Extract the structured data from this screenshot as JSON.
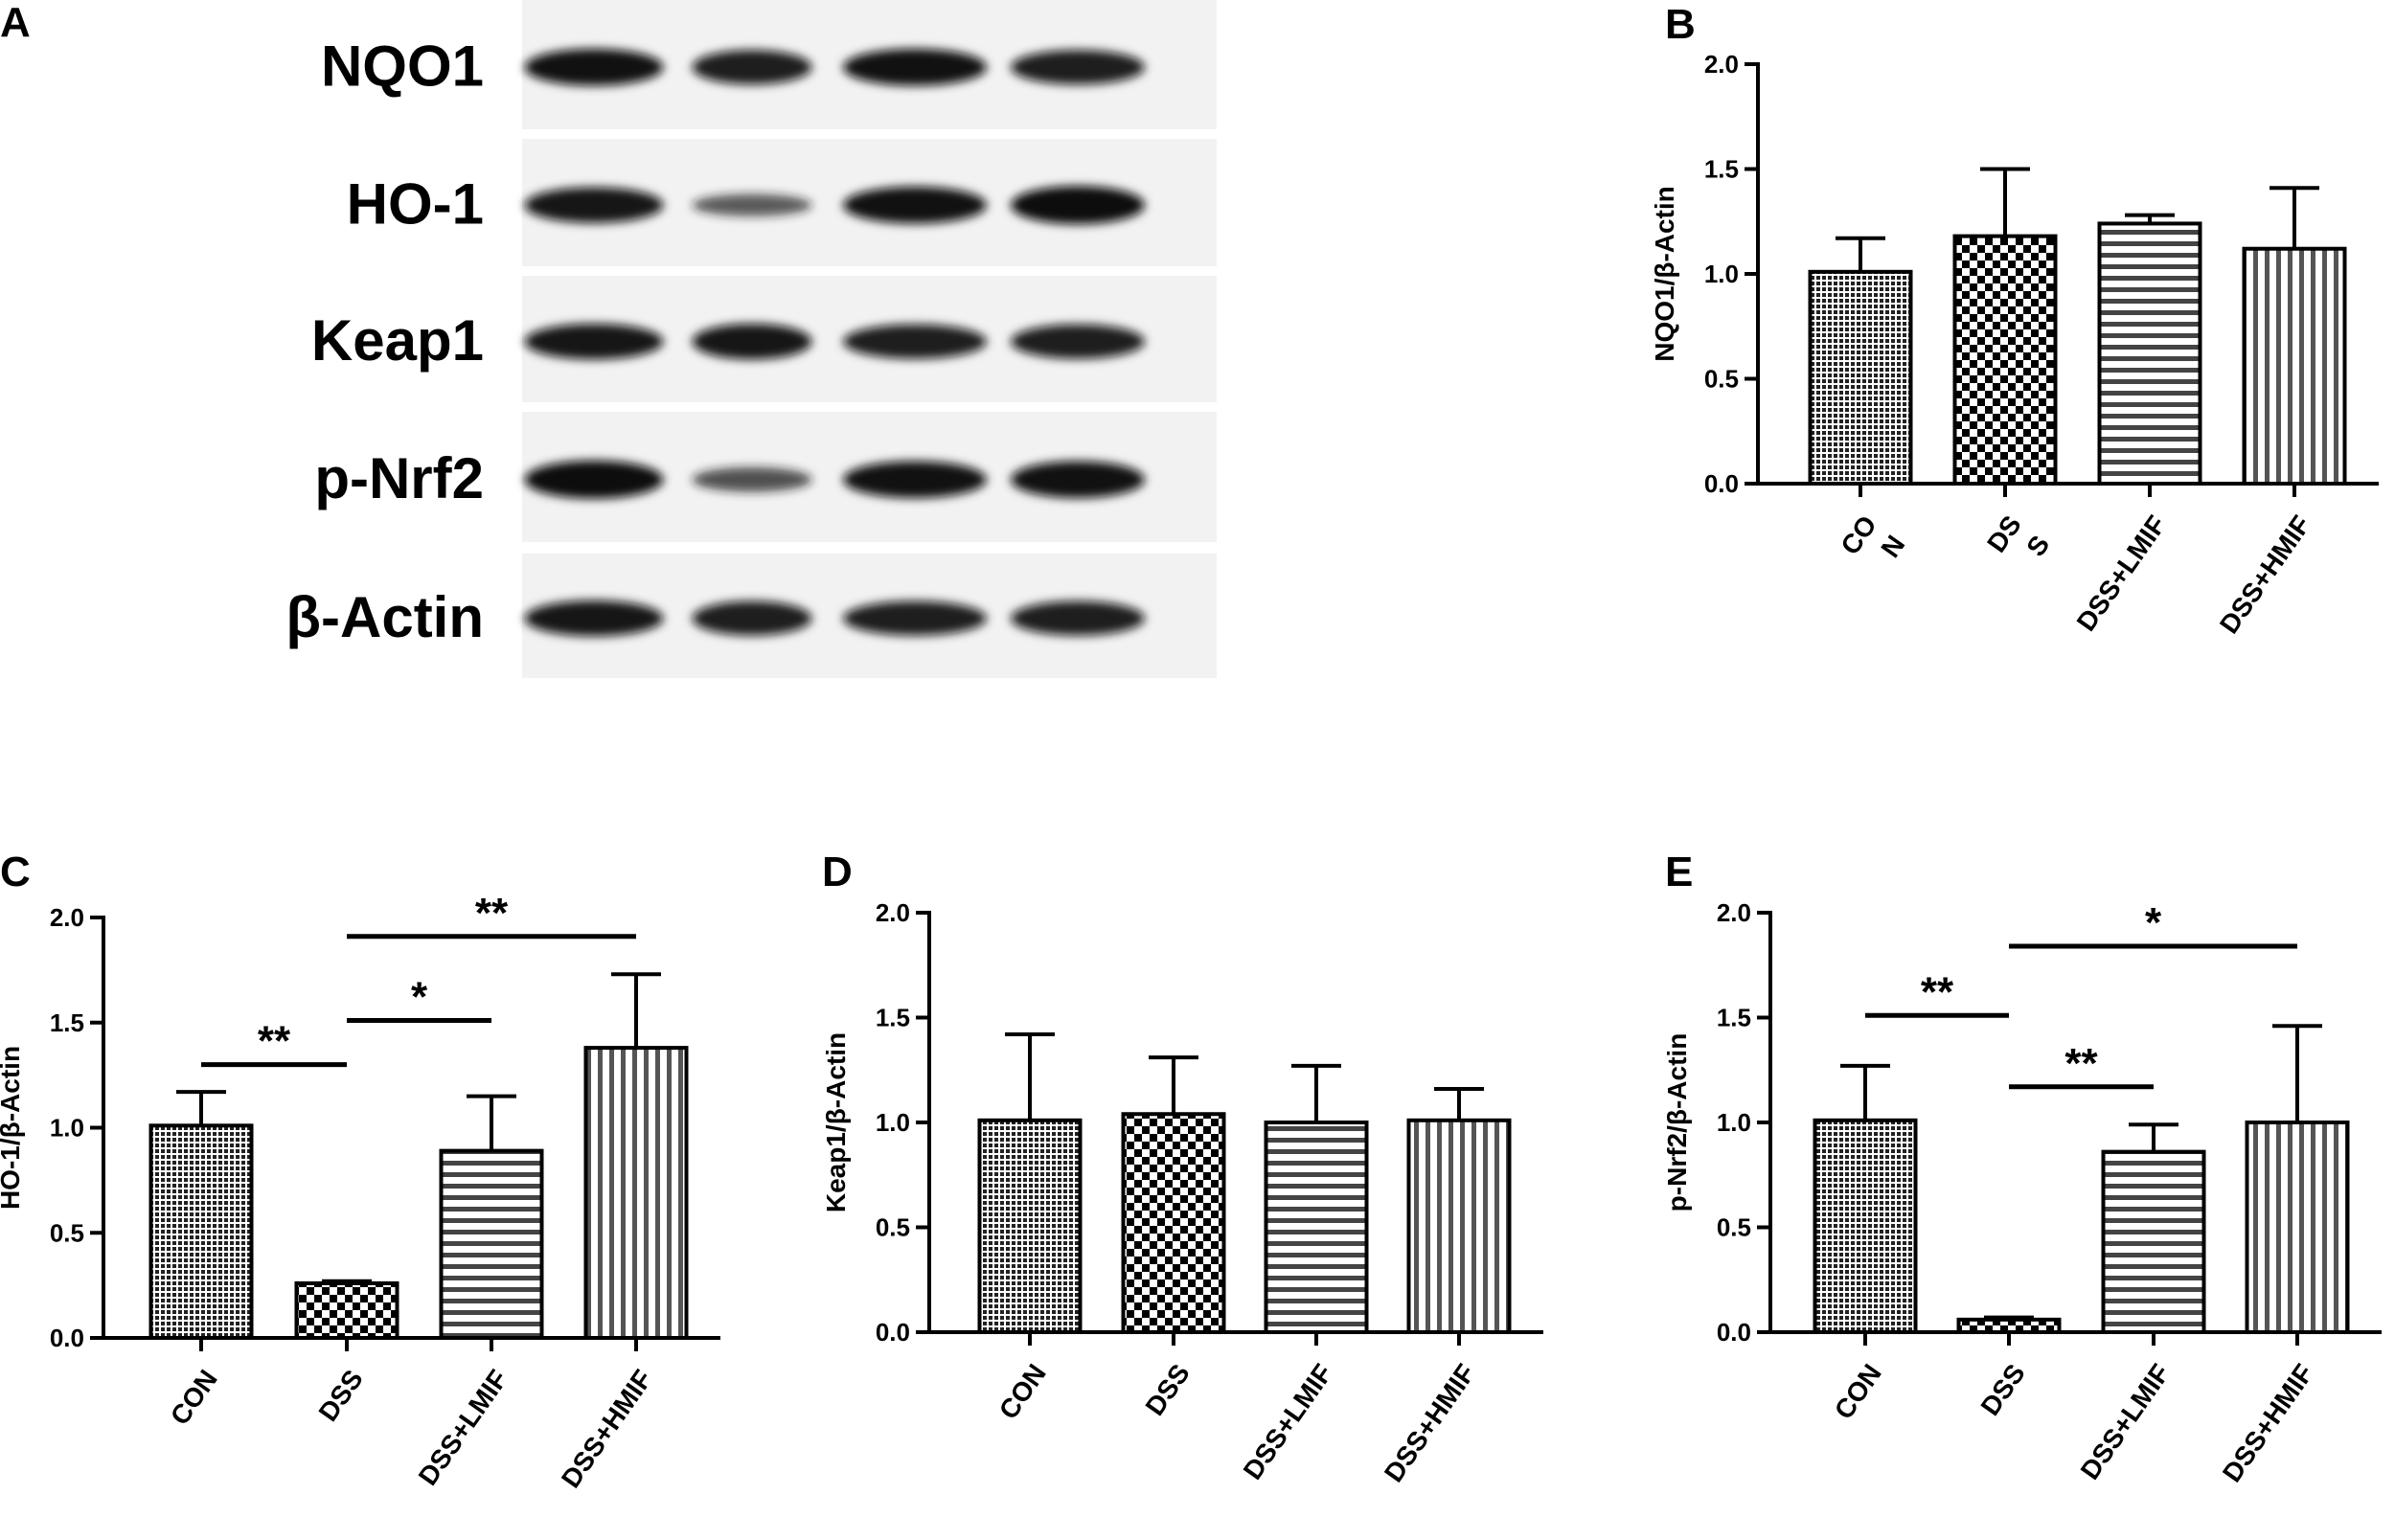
{
  "panel_letters": {
    "a": "A",
    "b": "B",
    "c": "C",
    "d": "D",
    "e": "E"
  },
  "blot": {
    "rows": [
      {
        "label": "NQO1",
        "intensities": [
          0.95,
          0.85,
          0.95,
          0.85
        ]
      },
      {
        "label": "HO-1",
        "intensities": [
          0.9,
          0.35,
          0.95,
          1.0
        ]
      },
      {
        "label": "Keap1",
        "intensities": [
          0.9,
          0.9,
          0.85,
          0.85
        ]
      },
      {
        "label": "p-Nrf2",
        "intensities": [
          1.0,
          0.45,
          0.95,
          0.95
        ]
      },
      {
        "label": "β-Actin",
        "intensities": [
          0.9,
          0.85,
          0.85,
          0.85
        ]
      }
    ]
  },
  "chart_data": [
    {
      "panel": "B",
      "type": "bar",
      "categories": [
        "CO\nN",
        "DS\nS",
        "DSS+LMIF",
        "DSS+HMIF"
      ],
      "values": [
        1.01,
        1.18,
        1.24,
        1.12
      ],
      "errors": [
        0.16,
        0.32,
        0.04,
        0.29
      ],
      "ylabel": "NQO1/β-Actin",
      "ylim": [
        0,
        2.0
      ],
      "yticks": [
        "0.0",
        "0.5",
        "1.0",
        "1.5",
        "2.0"
      ],
      "significance": []
    },
    {
      "panel": "C",
      "type": "bar",
      "categories": [
        "CON",
        "DSS",
        "DSS+LMIF",
        "DSS+HMIF"
      ],
      "values": [
        1.01,
        0.26,
        0.89,
        1.38
      ],
      "errors": [
        0.16,
        0.01,
        0.26,
        0.35
      ],
      "ylabel": "HO-1/β-Actin",
      "ylim": [
        0,
        2.0
      ],
      "yticks": [
        "0.0",
        "0.5",
        "1.0",
        "1.5",
        "2.0"
      ],
      "significance": [
        {
          "from": 0,
          "to": 1,
          "label": "**",
          "level": 1.3
        },
        {
          "from": 1,
          "to": 2,
          "label": "*",
          "level": 1.51
        },
        {
          "from": 1,
          "to": 3,
          "label": "**",
          "level": 1.91
        }
      ]
    },
    {
      "panel": "D",
      "type": "bar",
      "categories": [
        "CON",
        "DSS",
        "DSS+LMIF",
        "DSS+HMIF"
      ],
      "values": [
        1.01,
        1.04,
        1.0,
        1.01
      ],
      "errors": [
        0.41,
        0.27,
        0.27,
        0.15
      ],
      "ylabel": "Keap1/β-Actin",
      "ylim": [
        0,
        2.0
      ],
      "yticks": [
        "0.0",
        "0.5",
        "1.0",
        "1.5",
        "2.0"
      ],
      "significance": []
    },
    {
      "panel": "E",
      "type": "bar",
      "categories": [
        "CON",
        "DSS",
        "DSS+LMIF",
        "DSS+HMIF"
      ],
      "values": [
        1.01,
        0.06,
        0.86,
        1.0
      ],
      "errors": [
        0.26,
        0.01,
        0.13,
        0.46
      ],
      "ylabel": "p-Nrf2/β-Actin",
      "ylim": [
        0,
        2.0
      ],
      "yticks": [
        "0.0",
        "0.5",
        "1.0",
        "1.5",
        "2.0"
      ],
      "significance": [
        {
          "from": 0,
          "to": 1,
          "label": "**",
          "level": 1.51
        },
        {
          "from": 1,
          "to": 2,
          "label": "**",
          "level": 1.17
        },
        {
          "from": 1,
          "to": 3,
          "label": "*",
          "level": 1.84
        }
      ]
    }
  ],
  "bar_patterns": [
    "fine-dots",
    "checker",
    "horizontal-stripes",
    "vertical-stripes"
  ]
}
